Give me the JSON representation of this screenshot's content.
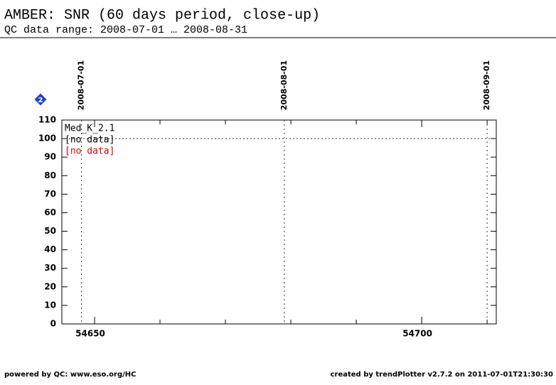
{
  "chart_data": {
    "type": "line",
    "title": "AMBER: SNR (60 days period, close-up)",
    "subtitle": "QC data range: 2008-07-01 … 2008-08-31",
    "xlim": [
      54645,
      54711.4
    ],
    "xticks": [
      54650,
      54700
    ],
    "xminor_ticks": [
      54660,
      54670,
      54680,
      54690,
      54710
    ],
    "ylim": [
      0,
      110
    ],
    "yticks": [
      0,
      10,
      20,
      30,
      40,
      50,
      60,
      70,
      80,
      90,
      100,
      110
    ],
    "reference_line": 100,
    "date_markers": [
      {
        "value": 54648,
        "label": "2008-07-01"
      },
      {
        "value": 54679,
        "label": "2008-08-01"
      },
      {
        "value": 54710,
        "label": "2008-09-01"
      }
    ],
    "legend": [
      {
        "text": "Med_K_2.1",
        "color": "#000000"
      },
      {
        "text": "[no data]",
        "color": "#000000"
      },
      {
        "text": "[no data]",
        "color": "#e00000"
      }
    ],
    "badge": "2",
    "footer_left": "powered by QC: www.eso.org/HC",
    "footer_right": "created by trendPlotter v2.7.2 on 2011-07-01T21:30:30"
  }
}
